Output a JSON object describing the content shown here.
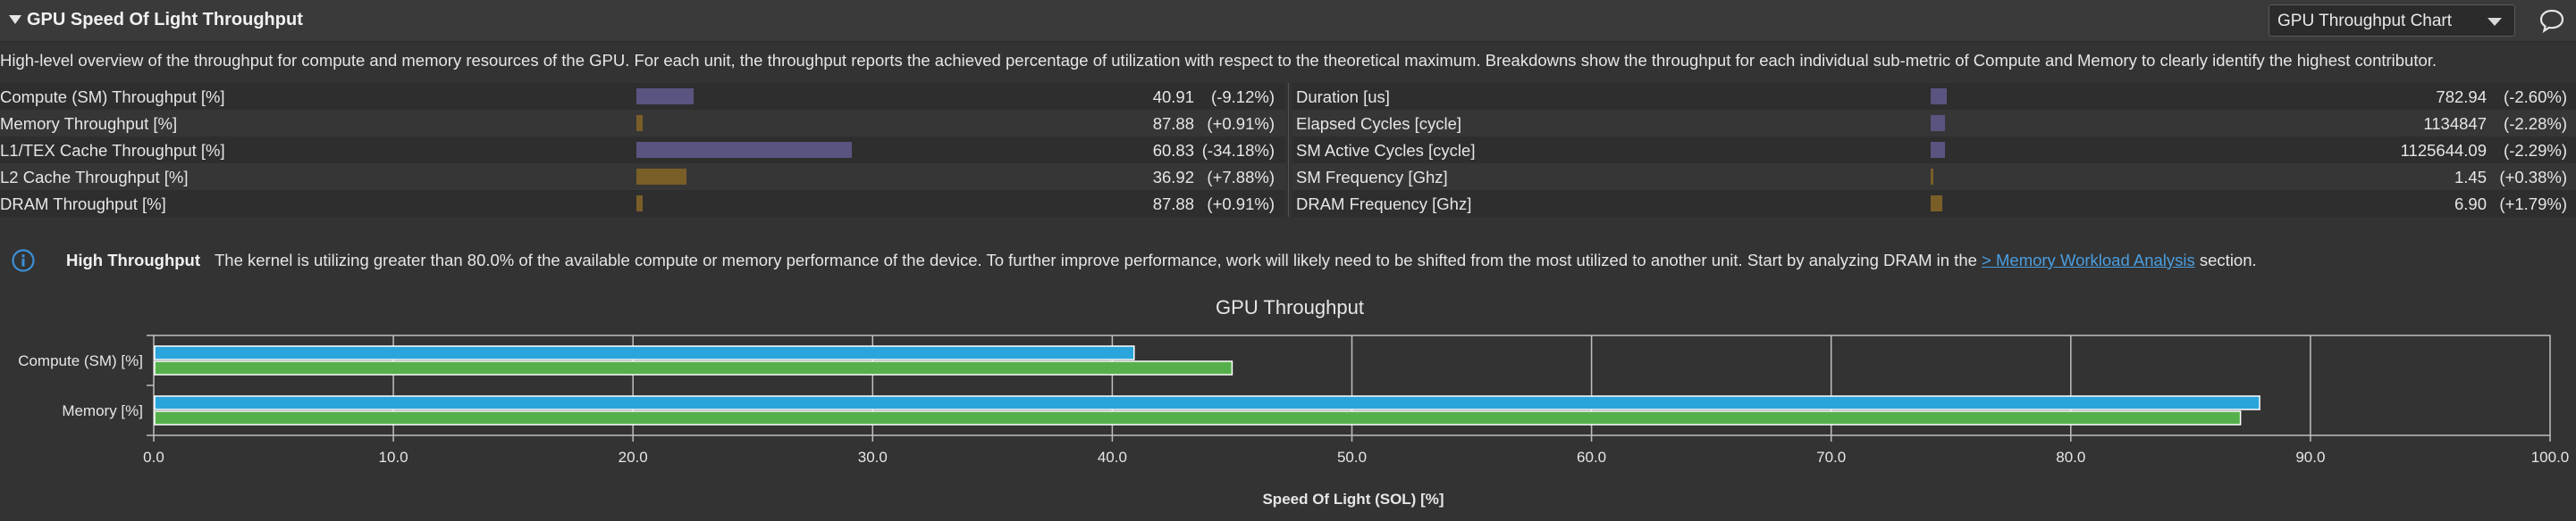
{
  "header": {
    "title": "GPU Speed Of Light Throughput",
    "chart_select": "GPU Throughput Chart"
  },
  "description": "High-level overview of the throughput for compute and memory resources of the GPU. For each unit, the throughput reports the achieved percentage of utilization with respect to the theoretical maximum. Breakdowns show the throughput for each individual sub-metric of Compute and Memory to clearly identify the highest contributor.",
  "colors": {
    "bar_purple": "#5a5480",
    "bar_brown": "#7a5e28",
    "series_baseline": "#2aa5dc",
    "series_current": "#55b04c"
  },
  "metrics_left": [
    {
      "label": "Compute (SM) Throughput [%]",
      "value": "40.91",
      "delta": "(-9.12%)",
      "fill": 0.0906,
      "color": "purple"
    },
    {
      "label": "Memory Throughput [%]",
      "value": "87.88",
      "delta": "(+0.91%)",
      "fill": 0.0104,
      "color": "brown"
    },
    {
      "label": "L1/TEX Cache Throughput [%]",
      "value": "60.83",
      "delta": "(-34.18%)",
      "fill": 0.3418,
      "color": "purple"
    },
    {
      "label": "L2 Cache Throughput [%]",
      "value": "36.92",
      "delta": "(+7.88%)",
      "fill": 0.0788,
      "color": "brown"
    },
    {
      "label": "DRAM Throughput [%]",
      "value": "87.88",
      "delta": "(+0.91%)",
      "fill": 0.0104,
      "color": "brown"
    }
  ],
  "metrics_right": [
    {
      "label": "Duration [us]",
      "value": "782.94",
      "delta": "(-2.60%)",
      "fill": 0.026,
      "color": "purple"
    },
    {
      "label": "Elapsed Cycles [cycle]",
      "value": "1134847",
      "delta": "(-2.28%)",
      "fill": 0.0228,
      "color": "purple"
    },
    {
      "label": "SM Active Cycles [cycle]",
      "value": "1125644.09",
      "delta": "(-2.29%)",
      "fill": 0.0229,
      "color": "purple"
    },
    {
      "label": "SM Frequency [Ghz]",
      "value": "1.45",
      "delta": "(+0.38%)",
      "fill": 0.0038,
      "color": "brown"
    },
    {
      "label": "DRAM Frequency [Ghz]",
      "value": "6.90",
      "delta": "(+1.79%)",
      "fill": 0.0179,
      "color": "brown"
    }
  ],
  "info": {
    "title": "High Throughput",
    "text_before": "The kernel is utilizing greater than 80.0% of the available compute or memory performance of the device. To further improve performance, work will likely need to be shifted from the most utilized to another unit. Start by analyzing DRAM in the ",
    "link": "> Memory Workload Analysis",
    "text_after": " section."
  },
  "chart_data": {
    "type": "bar",
    "orientation": "horizontal",
    "title": "GPU Throughput",
    "xlabel": "Speed Of Light (SOL) [%]",
    "ylabel": "",
    "categories": [
      "Compute (SM) [%]",
      "Memory [%]"
    ],
    "series": [
      {
        "values": [
          40.91,
          87.88
        ]
      },
      {
        "values": [
          45.0,
          87.08
        ]
      }
    ],
    "xlim": [
      0,
      100
    ],
    "xticks": [
      "0.0",
      "10.0",
      "20.0",
      "30.0",
      "40.0",
      "50.0",
      "60.0",
      "70.0",
      "80.0",
      "90.0",
      "100.0"
    ],
    "grid": true
  }
}
